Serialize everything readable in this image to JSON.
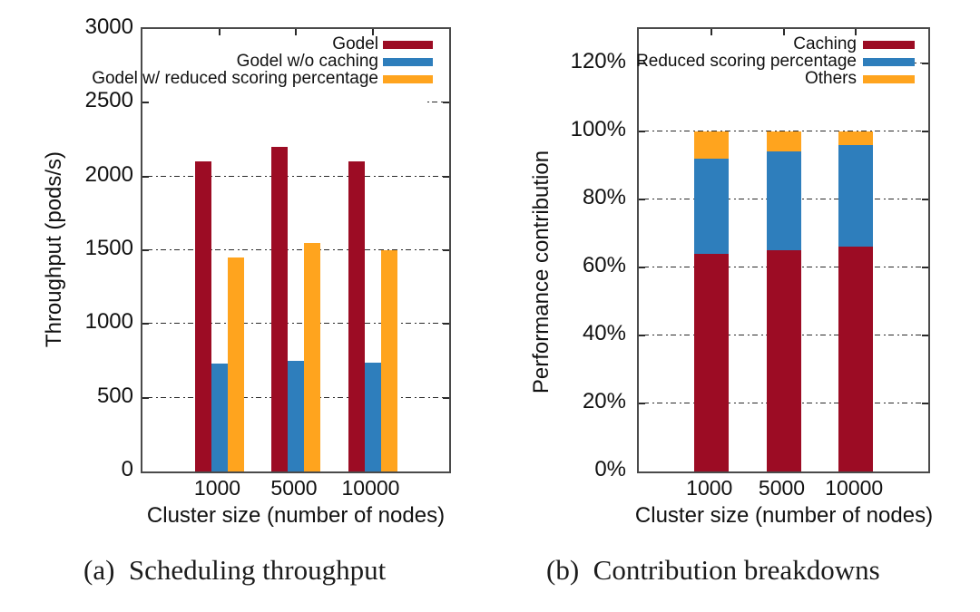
{
  "figure": {
    "caption_a": "(a)  Scheduling throughput",
    "caption_b": "(b)  Contribution breakdowns"
  },
  "colors": {
    "dark_red": "#9c0c24",
    "blue": "#2e7ebc",
    "orange": "#ffa41e",
    "grid": "#2a2a2a",
    "border": "#4a4a4a"
  },
  "chart_data": [
    {
      "type": "bar",
      "caption": "(a)  Scheduling throughput",
      "xlabel": "Cluster size (number of nodes)",
      "ylabel": "Throughput (pods/s)",
      "categories": [
        "1000",
        "5000",
        "10000"
      ],
      "series": [
        {
          "name": "Godel",
          "color": "#9c0c24",
          "values": [
            2100,
            2200,
            2100
          ]
        },
        {
          "name": "Godel w/o caching",
          "color": "#2e7ebc",
          "values": [
            730,
            750,
            740
          ]
        },
        {
          "name": "Godel w/ reduced scoring percentage",
          "color": "#ffa41e",
          "values": [
            1450,
            1550,
            1500
          ]
        }
      ],
      "ylim": [
        0,
        3000
      ],
      "yticks": [
        0,
        500,
        1000,
        1500,
        2000,
        2500,
        3000
      ],
      "ytick_labels": [
        "0",
        "500",
        "1000",
        "1500",
        "2000",
        "2500",
        "3000"
      ],
      "grid": true,
      "legend_position": "top-right"
    },
    {
      "type": "stacked-bar",
      "caption": "(b)  Contribution breakdowns",
      "xlabel": "Cluster size (number of nodes)",
      "ylabel": "Performance contribution",
      "categories": [
        "1000",
        "5000",
        "10000"
      ],
      "series": [
        {
          "name": "Caching",
          "color": "#9c0c24",
          "values": [
            64,
            65,
            66
          ]
        },
        {
          "name": "Reduced scoring percentage",
          "color": "#2e7ebc",
          "values": [
            28,
            29,
            30
          ]
        },
        {
          "name": "Others",
          "color": "#ffa41e",
          "values": [
            8,
            6,
            4
          ]
        }
      ],
      "ylim": [
        0,
        130
      ],
      "yticks": [
        0,
        20,
        40,
        60,
        80,
        100,
        120
      ],
      "ytick_labels": [
        "0%",
        "20%",
        "40%",
        "60%",
        "80%",
        "100%",
        "120%"
      ],
      "grid": true,
      "legend_position": "top-right"
    }
  ]
}
